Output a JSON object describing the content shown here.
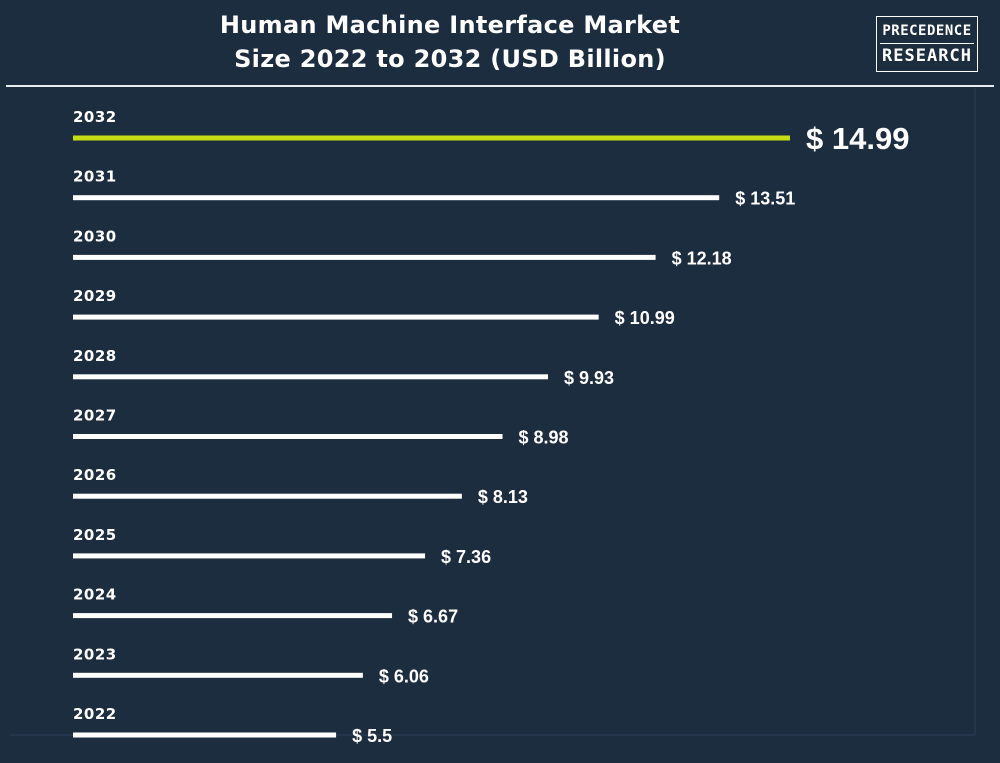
{
  "header": {
    "title_line1": "Human Machine Interface Market",
    "title_line2": "Size 2022 to 2032 (USD Billion)",
    "logo_line1": "PRECEDENCE",
    "logo_line2": "RESEARCH"
  },
  "colors": {
    "background": "#1d2d40",
    "bar": "#ffffff",
    "highlight_bar": "#c8dc16",
    "text": "#ffffff"
  },
  "chart_data": {
    "type": "bar",
    "orientation": "horizontal",
    "title": "Human Machine Interface Market Size 2022 to 2032 (USD Billion)",
    "categories": [
      "2032",
      "2031",
      "2030",
      "2029",
      "2028",
      "2027",
      "2026",
      "2025",
      "2024",
      "2023",
      "2022"
    ],
    "values": [
      14.99,
      13.51,
      12.18,
      10.99,
      9.93,
      8.98,
      8.13,
      7.36,
      6.67,
      6.06,
      5.5
    ],
    "value_labels": [
      "$ 14.99",
      "$ 13.51",
      "$ 12.18",
      "$ 10.99",
      "$ 9.93",
      "$ 8.98",
      "$ 8.13",
      "$ 7.36",
      "$ 6.67",
      "$ 6.06",
      "$ 5.5"
    ],
    "highlight": "2032",
    "xlim": [
      0,
      16
    ],
    "grid": false,
    "legend": "none"
  }
}
